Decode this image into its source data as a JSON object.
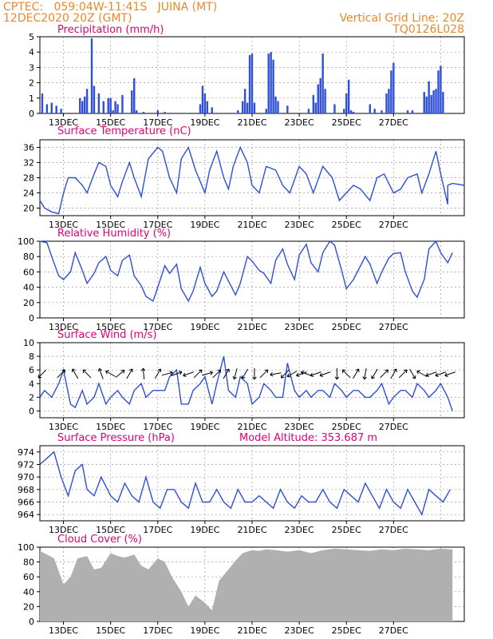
{
  "header": {
    "left_line1": "CPTEC:   059:04W-11:41S   JUINA (MT)",
    "left_line2": "12DEC2020 20Z (GMT)",
    "right_line1": "Vertical Grid Line: 20Z",
    "right_line2": "TQ0126L028"
  },
  "colors": {
    "header": "#e58a2b",
    "title": "#e0007a",
    "line": "#2e4fd6",
    "bar": "#2e4fd6",
    "cloud": "#b0b0b0",
    "grid": "#9a9a9a"
  },
  "x_ticks": [
    "13DEC",
    "15DEC",
    "17DEC",
    "19DEC",
    "21DEC",
    "23DEC",
    "25DEC",
    "27DEC"
  ],
  "chart_data": [
    {
      "id": "precip",
      "type": "bar",
      "title": "Precipitation (mm/h)",
      "ylim": [
        0,
        5
      ],
      "yticks": [
        0,
        1,
        2,
        3,
        4,
        5
      ],
      "x": [
        0.1,
        0.3,
        0.5,
        0.7,
        0.9,
        1.7,
        1.8,
        1.9,
        2.0,
        2.2,
        2.3,
        2.5,
        2.7,
        2.9,
        3.0,
        3.1,
        3.2,
        3.3,
        3.5,
        3.9,
        4.0,
        4.1,
        4.4,
        5.0,
        5.3,
        6.8,
        6.9,
        7.0,
        7.1,
        7.3,
        8.4,
        8.6,
        8.7,
        8.8,
        8.9,
        9.0,
        9.1,
        9.6,
        9.7,
        9.8,
        9.9,
        10.0,
        10.1,
        10.5,
        11.4,
        11.6,
        11.7,
        11.8,
        11.9,
        12.0,
        12.1,
        12.5,
        12.9,
        13.0,
        13.1,
        13.2,
        13.3,
        14.0,
        14.2,
        14.5,
        14.7,
        14.8,
        14.9,
        15.0,
        15.6,
        15.8,
        16.3,
        16.4,
        16.5,
        16.6,
        16.7,
        16.8,
        16.9,
        17.0,
        17.1
      ],
      "values": [
        1.3,
        0.6,
        0.7,
        0.5,
        0.3,
        1.0,
        0.8,
        1.1,
        1.6,
        4.9,
        1.8,
        1.3,
        0.8,
        1.0,
        1.0,
        0.2,
        0.8,
        0.6,
        1.2,
        1.5,
        2.3,
        0.2,
        0.1,
        0.2,
        0.1,
        0.6,
        1.8,
        1.3,
        0.8,
        0.4,
        0.2,
        0.8,
        1.6,
        0.7,
        3.8,
        3.9,
        0.7,
        0.3,
        3.9,
        4.0,
        3.5,
        1.1,
        0.8,
        0.5,
        0.3,
        1.2,
        0.7,
        1.9,
        2.3,
        3.9,
        1.6,
        0.6,
        0.3,
        1.3,
        2.2,
        0.2,
        0.1,
        0.6,
        0.3,
        0.2,
        1.3,
        1.6,
        2.8,
        3.3,
        0.2,
        0.2,
        1.4,
        1.1,
        2.1,
        1.2,
        1.5,
        1.6,
        2.8,
        3.1,
        1.4
      ]
    },
    {
      "id": "temp",
      "type": "line",
      "title": "Surface Temperature (nC)",
      "ylim": [
        18,
        38
      ],
      "yticks": [
        20,
        24,
        28,
        32,
        36
      ],
      "x": [
        0.0,
        0.2,
        0.5,
        0.8,
        1.0,
        1.2,
        1.5,
        1.8,
        2.0,
        2.3,
        2.5,
        2.8,
        3.0,
        3.3,
        3.5,
        3.8,
        4.0,
        4.3,
        4.6,
        5.0,
        5.2,
        5.5,
        5.8,
        6.0,
        6.3,
        6.6,
        7.0,
        7.2,
        7.5,
        7.8,
        8.0,
        8.2,
        8.5,
        8.8,
        9.0,
        9.3,
        9.6,
        10.0,
        10.3,
        10.6,
        11.0,
        11.3,
        11.6,
        12.0,
        12.4,
        12.7,
        13.0,
        13.3,
        13.6,
        14.0,
        14.3,
        14.6,
        15.0,
        15.3,
        15.6,
        16.0,
        16.2,
        16.5,
        16.8,
        17.0,
        17.3
      ],
      "values": [
        22,
        20,
        19,
        18.5,
        24,
        28,
        28,
        26,
        24,
        29,
        32,
        31,
        26,
        23,
        27,
        32,
        28,
        23,
        33,
        36,
        35,
        28,
        24,
        33,
        36,
        30,
        24,
        30,
        35,
        28,
        25,
        31,
        36,
        32,
        26,
        24,
        31,
        30,
        26,
        24,
        31,
        29,
        24,
        31,
        28,
        22,
        24,
        26,
        25,
        22,
        28,
        29,
        24,
        25,
        28,
        29,
        24,
        29,
        35,
        29,
        21
      ],
      "right_tail": [
        [
          17.3,
          26
        ],
        [
          17.5,
          26.5
        ],
        [
          18.0,
          26
        ]
      ]
    },
    {
      "id": "rh",
      "type": "line",
      "title": "Relative Humidity (%)",
      "ylim": [
        0,
        100
      ],
      "yticks": [
        0,
        20,
        40,
        60,
        80,
        100
      ],
      "x": [
        0.0,
        0.3,
        0.5,
        0.8,
        1.0,
        1.3,
        1.5,
        1.8,
        2.0,
        2.3,
        2.5,
        2.8,
        3.0,
        3.3,
        3.5,
        3.8,
        4.0,
        4.3,
        4.5,
        4.8,
        5.0,
        5.3,
        5.5,
        5.8,
        6.0,
        6.3,
        6.5,
        6.8,
        7.0,
        7.3,
        7.5,
        7.8,
        8.0,
        8.3,
        8.5,
        8.8,
        9.0,
        9.3,
        9.5,
        9.8,
        10.0,
        10.3,
        10.5,
        10.8,
        11.0,
        11.3,
        11.5,
        11.8,
        12.0,
        12.3,
        12.5,
        12.8,
        13.0,
        13.3,
        13.5,
        13.8,
        14.0,
        14.3,
        14.5,
        14.8,
        15.0,
        15.3,
        15.5,
        15.8,
        16.0,
        16.3,
        16.5,
        16.8,
        17.0,
        17.3,
        17.5
      ],
      "values": [
        100,
        98,
        80,
        55,
        50,
        60,
        85,
        62,
        45,
        58,
        72,
        80,
        62,
        55,
        75,
        82,
        55,
        42,
        28,
        22,
        40,
        68,
        58,
        70,
        38,
        22,
        35,
        66,
        45,
        28,
        35,
        60,
        48,
        30,
        45,
        80,
        74,
        62,
        58,
        45,
        75,
        90,
        70,
        50,
        82,
        96,
        72,
        60,
        85,
        100,
        95,
        62,
        38,
        50,
        62,
        80,
        70,
        45,
        60,
        78,
        84,
        85,
        60,
        35,
        27,
        50,
        90,
        100,
        85,
        72,
        85
      ]
    },
    {
      "id": "wind",
      "type": "line",
      "title": "Surface Wind (m/s)",
      "ylim": [
        -1,
        10
      ],
      "yticks": [
        0,
        2,
        4,
        6,
        8,
        10
      ],
      "x": [
        0.0,
        0.2,
        0.5,
        0.8,
        1.0,
        1.3,
        1.5,
        1.8,
        2.0,
        2.3,
        2.5,
        2.8,
        3.0,
        3.3,
        3.5,
        3.8,
        4.0,
        4.3,
        4.5,
        4.8,
        5.0,
        5.3,
        5.5,
        5.8,
        6.0,
        6.3,
        6.5,
        6.8,
        7.0,
        7.3,
        7.5,
        7.8,
        8.0,
        8.3,
        8.5,
        8.8,
        9.0,
        9.3,
        9.5,
        9.8,
        10.0,
        10.3,
        10.5,
        10.8,
        11.0,
        11.3,
        11.5,
        11.8,
        12.0,
        12.3,
        12.5,
        12.8,
        13.0,
        13.3,
        13.5,
        13.8,
        14.0,
        14.3,
        14.5,
        14.8,
        15.0,
        15.3,
        15.5,
        15.8,
        16.0,
        16.3,
        16.5,
        16.8,
        17.0,
        17.3,
        17.5
      ],
      "values": [
        2,
        3,
        2,
        4,
        6,
        1,
        0.5,
        3,
        1,
        2,
        4,
        1,
        2,
        3,
        2,
        1,
        3,
        4,
        2,
        3,
        3,
        3,
        5,
        6,
        1,
        1,
        3,
        4,
        5,
        1,
        4,
        8,
        3,
        2,
        5,
        4,
        1,
        2,
        4,
        3,
        2,
        2,
        7,
        3,
        2,
        3,
        2,
        3,
        3,
        2,
        4,
        3,
        2,
        3,
        3,
        2,
        2,
        3,
        4,
        1,
        2,
        3,
        3,
        2,
        4,
        3,
        2,
        3,
        4,
        2,
        0
      ],
      "arrows": [
        [
          0.1,
          225
        ],
        [
          0.9,
          45
        ],
        [
          1.5,
          120
        ],
        [
          2.0,
          135
        ],
        [
          2.6,
          110
        ],
        [
          3.0,
          150
        ],
        [
          3.4,
          40
        ],
        [
          3.8,
          60
        ],
        [
          4.4,
          95
        ],
        [
          5.0,
          60
        ],
        [
          5.4,
          15
        ],
        [
          5.8,
          20
        ],
        [
          6.3,
          200
        ],
        [
          6.7,
          45
        ],
        [
          7.1,
          15
        ],
        [
          7.5,
          45
        ],
        [
          7.9,
          60
        ],
        [
          8.3,
          255
        ],
        [
          8.7,
          240
        ],
        [
          9.1,
          270
        ],
        [
          9.5,
          45
        ],
        [
          10.0,
          190
        ],
        [
          10.4,
          225
        ],
        [
          10.7,
          210
        ],
        [
          11.1,
          200
        ],
        [
          11.3,
          160
        ],
        [
          11.7,
          200
        ],
        [
          12.1,
          200
        ],
        [
          12.6,
          270
        ],
        [
          13.0,
          135
        ],
        [
          13.4,
          60
        ],
        [
          13.8,
          260
        ],
        [
          14.2,
          240
        ],
        [
          14.6,
          45
        ],
        [
          15.0,
          60
        ],
        [
          15.4,
          45
        ],
        [
          15.8,
          300
        ],
        [
          16.2,
          150
        ],
        [
          16.6,
          200
        ],
        [
          17.0,
          200
        ],
        [
          17.4,
          200
        ]
      ]
    },
    {
      "id": "pressure",
      "type": "line",
      "title": "Surface Pressure (hPa)",
      "annotation": "Model Altitude: 353.687 m",
      "ylim": [
        963,
        975
      ],
      "yticks": [
        964,
        966,
        968,
        970,
        972,
        974
      ],
      "x": [
        0.0,
        0.3,
        0.6,
        0.9,
        1.2,
        1.5,
        1.8,
        2.0,
        2.3,
        2.6,
        3.0,
        3.3,
        3.6,
        3.9,
        4.2,
        4.5,
        4.8,
        5.1,
        5.4,
        5.7,
        6.0,
        6.3,
        6.6,
        6.9,
        7.2,
        7.5,
        7.8,
        8.1,
        8.4,
        8.7,
        9.0,
        9.3,
        9.6,
        9.9,
        10.2,
        10.5,
        10.8,
        11.1,
        11.4,
        11.7,
        12.0,
        12.3,
        12.6,
        12.9,
        13.2,
        13.5,
        13.8,
        14.1,
        14.4,
        14.7,
        15.0,
        15.3,
        15.6,
        15.9,
        16.2,
        16.5,
        16.8,
        17.1,
        17.4
      ],
      "values": [
        972,
        973,
        974,
        970,
        967,
        971,
        972,
        968,
        967,
        970,
        967,
        966,
        969,
        967,
        966,
        970,
        966,
        965,
        968,
        968,
        966,
        965,
        969,
        966,
        966,
        968,
        966,
        965,
        968,
        966,
        966,
        967,
        966,
        965,
        968,
        966,
        965,
        967,
        966,
        966,
        968,
        966,
        965,
        968,
        967,
        966,
        969,
        967,
        965,
        968,
        966,
        965,
        968,
        966,
        964,
        968,
        967,
        966,
        968
      ]
    },
    {
      "id": "cloud",
      "type": "area",
      "title": "Cloud Cover (%)",
      "ylim": [
        0,
        100
      ],
      "yticks": [
        0,
        20,
        40,
        60,
        80,
        100
      ],
      "x": [
        0.0,
        0.3,
        0.6,
        1.0,
        1.3,
        1.6,
        2.0,
        2.3,
        2.6,
        3.0,
        3.3,
        3.6,
        4.0,
        4.3,
        4.6,
        5.0,
        5.3,
        5.6,
        6.0,
        6.3,
        6.6,
        7.0,
        7.3,
        7.6,
        8.0,
        8.3,
        8.6,
        9.0,
        9.3,
        9.6,
        10.0,
        10.5,
        11.0,
        11.5,
        12.0,
        12.5,
        13.0,
        13.5,
        14.0,
        14.5,
        15.0,
        15.5,
        16.0,
        16.5,
        17.0,
        17.5
      ],
      "values": [
        95,
        90,
        85,
        50,
        60,
        85,
        88,
        70,
        72,
        92,
        88,
        86,
        90,
        75,
        70,
        85,
        80,
        60,
        40,
        20,
        35,
        25,
        15,
        55,
        70,
        82,
        92,
        96,
        95,
        97,
        96,
        94,
        96,
        92,
        96,
        98,
        97,
        96,
        95,
        97,
        96,
        98,
        97,
        96,
        98,
        97
      ]
    }
  ]
}
